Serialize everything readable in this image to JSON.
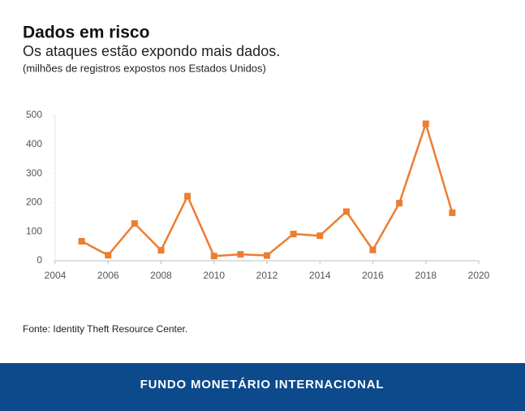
{
  "chart_data": {
    "type": "line",
    "title": "Dados em risco",
    "subtitle": "Os ataques estão expondo mais dados.",
    "note": "(milhões de registros expostos nos Estados Unidos)",
    "x": [
      2005,
      2006,
      2007,
      2008,
      2009,
      2010,
      2011,
      2012,
      2013,
      2014,
      2015,
      2016,
      2017,
      2018,
      2019
    ],
    "series": [
      {
        "color": "#ed7d31",
        "values": [
          67,
          19,
          128,
          36,
          222,
          16,
          22,
          18,
          92,
          86,
          169,
          37,
          198,
          471,
          165
        ]
      }
    ],
    "xlim": [
      2004,
      2020
    ],
    "xticks": [
      2004,
      2006,
      2008,
      2010,
      2012,
      2014,
      2016,
      2018,
      2020
    ],
    "ylim": [
      0,
      500
    ],
    "yticks": [
      0,
      100,
      200,
      300,
      400,
      500
    ],
    "source": "Fonte: Identity Theft Resource Center.",
    "footer": "FUNDO MONETÁRIO INTERNACIONAL"
  }
}
